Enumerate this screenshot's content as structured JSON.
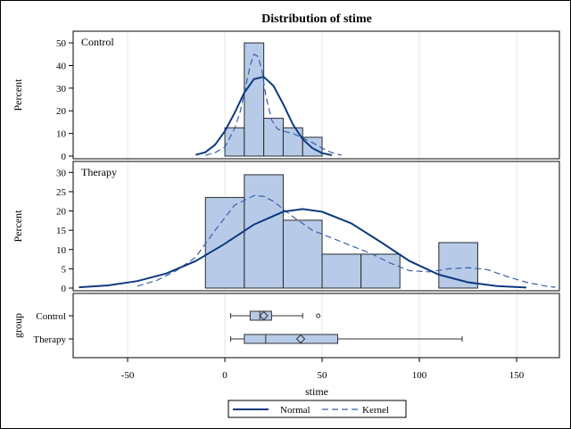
{
  "chart_data": {
    "type": "histogram-panel",
    "title": "Distribution of stime",
    "xlabel": "stime",
    "x_ticks": [
      -50,
      0,
      50,
      100,
      150
    ],
    "xlim": [
      -78,
      172
    ],
    "colors": {
      "bar_fill": "#b7cbe8",
      "bar_stroke": "#2b2b2b",
      "normal_curve": "#0d3a80",
      "kernel_curve": "#3a5ea8",
      "grid": "#e6e6e6"
    },
    "panels": [
      {
        "label": "Control",
        "ylabel": "Percent",
        "ylim": [
          0,
          52
        ],
        "y_ticks": [
          0,
          10,
          20,
          30,
          40,
          50
        ],
        "bins": [
          {
            "x0": 0,
            "x1": 10,
            "percent": 12.5
          },
          {
            "x0": 10,
            "x1": 20,
            "percent": 50
          },
          {
            "x0": 20,
            "x1": 30,
            "percent": 16.7
          },
          {
            "x0": 30,
            "x1": 40,
            "percent": 12.5
          },
          {
            "x0": 40,
            "x1": 50,
            "percent": 8.3
          }
        ],
        "normal": {
          "x": [
            -15,
            -10,
            -5,
            0,
            5,
            10,
            15,
            20,
            25,
            30,
            35,
            40,
            45,
            50,
            55
          ],
          "y": [
            0.5,
            1.7,
            5,
            11,
            19,
            28,
            34,
            35,
            31,
            23,
            14,
            7.5,
            3.5,
            1.3,
            0.4
          ]
        },
        "kernel": {
          "x": [
            -10,
            -5,
            0,
            5,
            8,
            11,
            13,
            15,
            17,
            19,
            21,
            24,
            27,
            30,
            35,
            40,
            45,
            50,
            55,
            60
          ],
          "y": [
            0.3,
            1.5,
            4,
            12,
            20,
            32,
            40,
            45,
            44,
            38,
            27,
            16,
            12,
            11,
            10,
            8,
            6,
            3.5,
            1.5,
            0.4
          ]
        }
      },
      {
        "label": "Therapy",
        "ylabel": "Percent",
        "ylim": [
          0,
          31
        ],
        "y_ticks": [
          0,
          5,
          10,
          15,
          20,
          25,
          30
        ],
        "bins": [
          {
            "x0": -10,
            "x1": 10,
            "percent": 23.5
          },
          {
            "x0": 10,
            "x1": 30,
            "percent": 29.4
          },
          {
            "x0": 30,
            "x1": 50,
            "percent": 17.6
          },
          {
            "x0": 50,
            "x1": 70,
            "percent": 8.8
          },
          {
            "x0": 70,
            "x1": 90,
            "percent": 8.8
          },
          {
            "x0": 110,
            "x1": 130,
            "percent": 11.8
          }
        ],
        "normal": {
          "x": [
            -75,
            -60,
            -45,
            -30,
            -15,
            0,
            15,
            30,
            40,
            50,
            65,
            80,
            95,
            110,
            125,
            140,
            155
          ],
          "y": [
            0.2,
            0.7,
            1.8,
            3.8,
            7,
            11.5,
            16.5,
            19.8,
            20.5,
            19.8,
            16.8,
            12,
            7,
            3.5,
            1.5,
            0.5,
            0.15
          ]
        },
        "kernel": {
          "x": [
            -45,
            -35,
            -25,
            -15,
            -5,
            5,
            15,
            20,
            25,
            35,
            45,
            55,
            65,
            75,
            85,
            95,
            105,
            115,
            125,
            135,
            145,
            155,
            165,
            170
          ],
          "y": [
            0.5,
            2,
            4.5,
            8,
            15,
            21.5,
            24,
            23.8,
            22.5,
            18.5,
            15,
            13,
            11,
            9,
            6.5,
            4.5,
            4.2,
            5,
            5.3,
            4.8,
            3,
            1.5,
            0.5,
            0.2
          ]
        }
      }
    ],
    "boxplot": {
      "ylabel": "group",
      "groups": [
        {
          "label": "Control",
          "min": 3,
          "q1": 13,
          "median": 18,
          "q3": 24,
          "max": 40,
          "mean": 20,
          "outliers": [
            48
          ]
        },
        {
          "label": "Therapy",
          "min": 3,
          "q1": 10,
          "median": 21,
          "q3": 58,
          "max": 122,
          "mean": 39,
          "outliers": []
        }
      ]
    },
    "legend": {
      "placement": "bottom",
      "items": [
        {
          "label": "Normal",
          "style": "solid"
        },
        {
          "label": "Kernel",
          "style": "dashed"
        }
      ]
    }
  }
}
